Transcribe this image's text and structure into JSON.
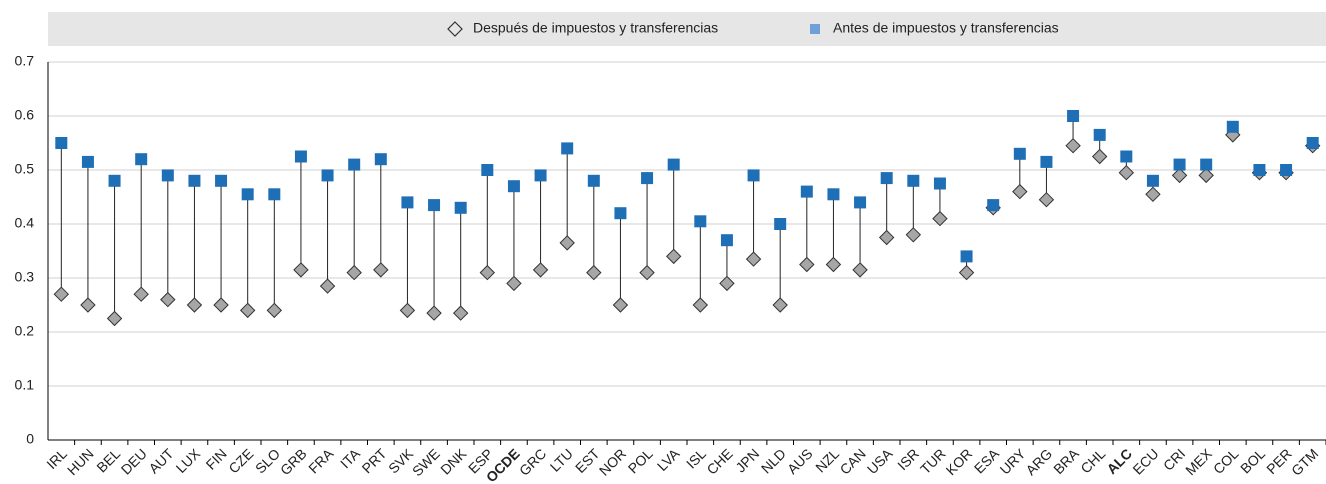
{
  "chart_data": {
    "type": "dumbbell",
    "categories": [
      "IRL",
      "HUN",
      "BEL",
      "DEU",
      "AUT",
      "LUX",
      "FIN",
      "CZE",
      "SLO",
      "GRB",
      "FRA",
      "ITA",
      "PRT",
      "SVK",
      "SWE",
      "DNK",
      "ESP",
      "OCDE",
      "GRC",
      "LTU",
      "EST",
      "NOR",
      "POL",
      "LVA",
      "ISL",
      "CHE",
      "JPN",
      "NLD",
      "AUS",
      "NZL",
      "CAN",
      "USA",
      "ISR",
      "TUR",
      "KOR",
      "ESA",
      "URY",
      "ARG",
      "BRA",
      "CHL",
      "ALC",
      "ECU",
      "CRI",
      "MEX",
      "COL",
      "BOL",
      "PER",
      "GTM"
    ],
    "bold_indices": [
      17,
      40
    ],
    "series": [
      {
        "name": "Después de impuestos y transferencias",
        "color": "#a6a6a6",
        "marker": "diamond",
        "values": [
          0.27,
          0.25,
          0.225,
          0.27,
          0.26,
          0.25,
          0.25,
          0.24,
          0.24,
          0.315,
          0.285,
          0.31,
          0.315,
          0.24,
          0.235,
          0.235,
          0.31,
          0.29,
          0.315,
          0.365,
          0.31,
          0.25,
          0.31,
          0.34,
          0.25,
          0.29,
          0.335,
          0.25,
          0.325,
          0.325,
          0.315,
          0.375,
          0.38,
          0.41,
          0.31,
          0.43,
          0.46,
          0.445,
          0.545,
          0.525,
          0.495,
          0.455,
          0.49,
          0.49,
          0.565,
          0.495,
          0.495,
          0.545
        ]
      },
      {
        "name": "Antes de impuestos y transferencias",
        "color": "#1f6fb6",
        "marker": "square",
        "values": [
          0.55,
          0.515,
          0.48,
          0.52,
          0.49,
          0.48,
          0.48,
          0.455,
          0.455,
          0.525,
          0.49,
          0.51,
          0.52,
          0.44,
          0.435,
          0.43,
          0.5,
          0.47,
          0.49,
          0.54,
          0.48,
          0.42,
          0.485,
          0.51,
          0.405,
          0.37,
          0.49,
          0.4,
          0.46,
          0.455,
          0.44,
          0.485,
          0.48,
          0.475,
          0.34,
          0.435,
          0.53,
          0.515,
          0.6,
          0.565,
          0.525,
          0.48,
          0.51,
          0.51,
          0.58,
          0.5,
          0.5,
          0.55
        ]
      }
    ],
    "ylim": [
      0,
      0.7
    ],
    "yticks": [
      0,
      0.1,
      0.2,
      0.3,
      0.4,
      0.5,
      0.6,
      0.7
    ],
    "grid": true
  }
}
